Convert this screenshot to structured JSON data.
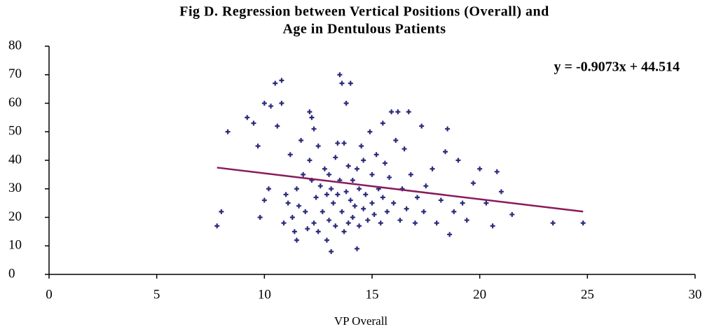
{
  "chart_data": {
    "type": "scatter",
    "title": [
      "Fig D. Regression between Vertical Positions (Overall) and",
      "Age in Dentulous Patients"
    ],
    "x_label": "VP Overall",
    "annotation": "y = -0.9073x + 44.514",
    "color": "#2b2b7c",
    "x": [
      7.8,
      8.0,
      8.3,
      9.2,
      9.5,
      9.7,
      9.8,
      10.0,
      10.0,
      10.2,
      10.3,
      10.5,
      10.6,
      10.8,
      10.8,
      10.9,
      11.0,
      11.1,
      11.2,
      11.3,
      11.4,
      11.5,
      11.5,
      11.6,
      11.7,
      11.8,
      11.9,
      12.0,
      12.1,
      12.1,
      12.2,
      12.2,
      12.3,
      12.3,
      12.4,
      12.5,
      12.5,
      12.6,
      12.7,
      12.8,
      12.9,
      12.9,
      13.0,
      13.0,
      13.1,
      13.1,
      13.2,
      13.3,
      13.3,
      13.4,
      13.4,
      13.5,
      13.5,
      13.6,
      13.6,
      13.7,
      13.7,
      13.8,
      13.8,
      13.9,
      13.9,
      14.0,
      14.0,
      14.1,
      14.1,
      14.2,
      14.3,
      14.3,
      14.4,
      14.4,
      14.5,
      14.6,
      14.6,
      14.7,
      14.8,
      14.9,
      15.0,
      15.0,
      15.1,
      15.2,
      15.3,
      15.4,
      15.5,
      15.5,
      15.6,
      15.7,
      15.8,
      15.9,
      16.0,
      16.1,
      16.2,
      16.3,
      16.4,
      16.5,
      16.6,
      16.7,
      16.8,
      17.0,
      17.1,
      17.3,
      17.4,
      17.5,
      17.8,
      18.0,
      18.2,
      18.4,
      18.5,
      18.6,
      18.8,
      19.0,
      19.2,
      19.4,
      19.7,
      20.0,
      20.3,
      20.6,
      20.8,
      21.0,
      21.5,
      23.4,
      24.8
    ],
    "values": [
      17,
      22,
      50,
      55,
      53,
      45,
      20,
      60,
      26,
      30,
      59,
      67,
      52,
      68,
      60,
      18,
      28,
      25,
      42,
      20,
      15,
      12,
      30,
      24,
      47,
      35,
      22,
      16,
      57,
      40,
      55,
      33,
      51,
      18,
      27,
      45,
      15,
      31,
      22,
      37,
      12,
      28,
      35,
      19,
      8,
      30,
      25,
      41,
      17,
      46,
      28,
      70,
      33,
      67,
      22,
      46,
      15,
      60,
      29,
      38,
      18,
      67,
      26,
      33,
      20,
      24,
      9,
      37,
      30,
      17,
      45,
      23,
      40,
      28,
      19,
      50,
      35,
      25,
      21,
      42,
      30,
      18,
      53,
      27,
      39,
      22,
      34,
      57,
      25,
      47,
      57,
      19,
      30,
      44,
      23,
      57,
      35,
      18,
      27,
      52,
      22,
      31,
      37,
      18,
      26,
      43,
      51,
      14,
      22,
      40,
      25,
      19,
      32,
      37,
      25,
      17,
      36,
      29,
      21,
      18,
      18
    ],
    "trendline": {
      "color": "#8a1a5c",
      "x": [
        7.8,
        24.8
      ],
      "values": [
        37.437,
        22.013
      ]
    },
    "xlim": [
      0,
      30
    ],
    "xticks": [
      0,
      5,
      10,
      15,
      20,
      25,
      30
    ],
    "ylim": [
      0,
      80
    ],
    "yticks": [
      0,
      10,
      20,
      30,
      40,
      50,
      60,
      70,
      80
    ]
  }
}
